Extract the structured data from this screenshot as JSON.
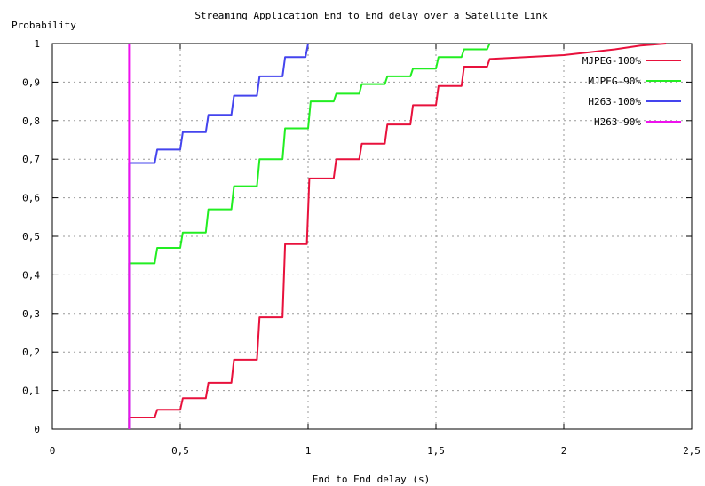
{
  "chart_data": {
    "type": "line",
    "title": "Streaming Application End to End delay over a Satellite Link",
    "xlabel": "End to End delay (s)",
    "ylabel": "Probability",
    "xlim": [
      0,
      2.5
    ],
    "ylim": [
      0,
      1
    ],
    "x_ticks": [
      "0",
      "0,5",
      "1",
      "1,5",
      "2",
      "2,5"
    ],
    "y_ticks": [
      "0",
      "0,1",
      "0,2",
      "0,3",
      "0,4",
      "0,5",
      "0,6",
      "0,7",
      "0,8",
      "0,9",
      "1"
    ],
    "x_tick_values": [
      0,
      0.5,
      1,
      1.5,
      2,
      2.5
    ],
    "y_tick_values": [
      0,
      0.1,
      0.2,
      0.3,
      0.4,
      0.5,
      0.6,
      0.7,
      0.8,
      0.9,
      1
    ],
    "grid": true,
    "legend_position": "top-right",
    "series": [
      {
        "name": "MJPEG-100%",
        "color": "#e8113c",
        "points": [
          [
            0.3,
            0.0
          ],
          [
            0.3,
            0.03
          ],
          [
            0.4,
            0.03
          ],
          [
            0.41,
            0.05
          ],
          [
            0.5,
            0.05
          ],
          [
            0.51,
            0.08
          ],
          [
            0.6,
            0.08
          ],
          [
            0.61,
            0.12
          ],
          [
            0.7,
            0.12
          ],
          [
            0.71,
            0.18
          ],
          [
            0.8,
            0.18
          ],
          [
            0.81,
            0.29
          ],
          [
            0.9,
            0.29
          ],
          [
            0.91,
            0.48
          ],
          [
            0.995,
            0.48
          ],
          [
            1.005,
            0.65
          ],
          [
            1.1,
            0.65
          ],
          [
            1.11,
            0.7
          ],
          [
            1.2,
            0.7
          ],
          [
            1.21,
            0.74
          ],
          [
            1.3,
            0.74
          ],
          [
            1.31,
            0.79
          ],
          [
            1.4,
            0.79
          ],
          [
            1.41,
            0.84
          ],
          [
            1.5,
            0.84
          ],
          [
            1.51,
            0.89
          ],
          [
            1.6,
            0.89
          ],
          [
            1.61,
            0.94
          ],
          [
            1.7,
            0.94
          ],
          [
            1.71,
            0.96
          ],
          [
            2.0,
            0.97
          ],
          [
            2.2,
            0.985
          ],
          [
            2.3,
            0.995
          ],
          [
            2.4,
            1.0
          ]
        ]
      },
      {
        "name": "MJPEG-90%",
        "color": "#22ee22",
        "points": [
          [
            0.3,
            0.0
          ],
          [
            0.3,
            0.43
          ],
          [
            0.4,
            0.43
          ],
          [
            0.41,
            0.47
          ],
          [
            0.5,
            0.47
          ],
          [
            0.51,
            0.51
          ],
          [
            0.6,
            0.51
          ],
          [
            0.61,
            0.57
          ],
          [
            0.7,
            0.57
          ],
          [
            0.71,
            0.63
          ],
          [
            0.8,
            0.63
          ],
          [
            0.81,
            0.7
          ],
          [
            0.9,
            0.7
          ],
          [
            0.91,
            0.78
          ],
          [
            1.0,
            0.78
          ],
          [
            1.01,
            0.85
          ],
          [
            1.1,
            0.85
          ],
          [
            1.11,
            0.87
          ],
          [
            1.2,
            0.87
          ],
          [
            1.21,
            0.895
          ],
          [
            1.3,
            0.895
          ],
          [
            1.31,
            0.915
          ],
          [
            1.4,
            0.915
          ],
          [
            1.41,
            0.935
          ],
          [
            1.5,
            0.935
          ],
          [
            1.51,
            0.965
          ],
          [
            1.6,
            0.965
          ],
          [
            1.61,
            0.985
          ],
          [
            1.7,
            0.985
          ],
          [
            1.71,
            1.0
          ]
        ]
      },
      {
        "name": "H263-100%",
        "color": "#4444ee",
        "points": [
          [
            0.3,
            0.0
          ],
          [
            0.3,
            0.69
          ],
          [
            0.4,
            0.69
          ],
          [
            0.41,
            0.725
          ],
          [
            0.5,
            0.725
          ],
          [
            0.51,
            0.77
          ],
          [
            0.6,
            0.77
          ],
          [
            0.61,
            0.815
          ],
          [
            0.7,
            0.815
          ],
          [
            0.71,
            0.865
          ],
          [
            0.8,
            0.865
          ],
          [
            0.81,
            0.915
          ],
          [
            0.9,
            0.915
          ],
          [
            0.91,
            0.965
          ],
          [
            0.99,
            0.965
          ],
          [
            1.0,
            1.0
          ]
        ]
      },
      {
        "name": "H263-90%",
        "color": "#ee11ee",
        "points": [
          [
            0.3,
            0.0
          ],
          [
            0.3,
            1.0
          ]
        ]
      }
    ]
  }
}
